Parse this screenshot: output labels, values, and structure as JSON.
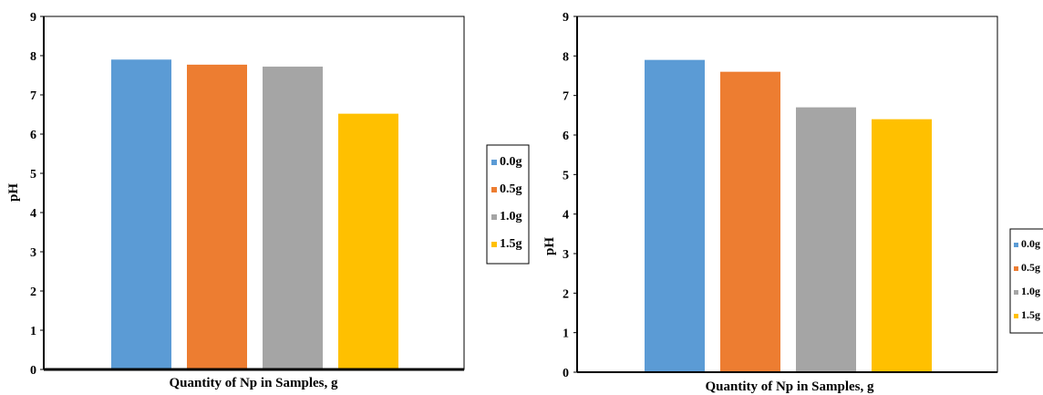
{
  "chart_data": [
    {
      "type": "bar",
      "categories": [
        "0.0g",
        "0.5g",
        "1.0g",
        "1.5g"
      ],
      "values": [
        7.9,
        7.77,
        7.72,
        6.52
      ],
      "colors": [
        "#5B9BD5",
        "#ED7D31",
        "#A5A5A5",
        "#FFC000"
      ],
      "xlabel": "Quantity of Np in Samples, g",
      "ylabel": "pH",
      "ylim": [
        0,
        9
      ],
      "yticks": [
        "0",
        "1",
        "2",
        "3",
        "4",
        "5",
        "6",
        "7",
        "8",
        "9"
      ],
      "grid": false,
      "legend": {
        "placement": "right",
        "entries": [
          "0.0g",
          "0.5g",
          "1.0g",
          "1.5g"
        ]
      }
    },
    {
      "type": "bar",
      "categories": [
        "0.0g",
        "0.5g",
        "1.0g",
        "1.5g"
      ],
      "values": [
        7.9,
        7.6,
        6.7,
        6.4
      ],
      "colors": [
        "#5B9BD5",
        "#ED7D31",
        "#A5A5A5",
        "#FFC000"
      ],
      "xlabel": "Quantity of Np in Samples, g",
      "ylabel": "pH",
      "ylim": [
        0,
        9
      ],
      "yticks": [
        "0",
        "1",
        "2",
        "3",
        "4",
        "5",
        "6",
        "7",
        "8",
        "9"
      ],
      "grid": false,
      "legend": {
        "placement": "right",
        "entries": [
          "0.0g",
          "0.5g",
          "1.0g",
          "1.5g"
        ]
      }
    }
  ]
}
